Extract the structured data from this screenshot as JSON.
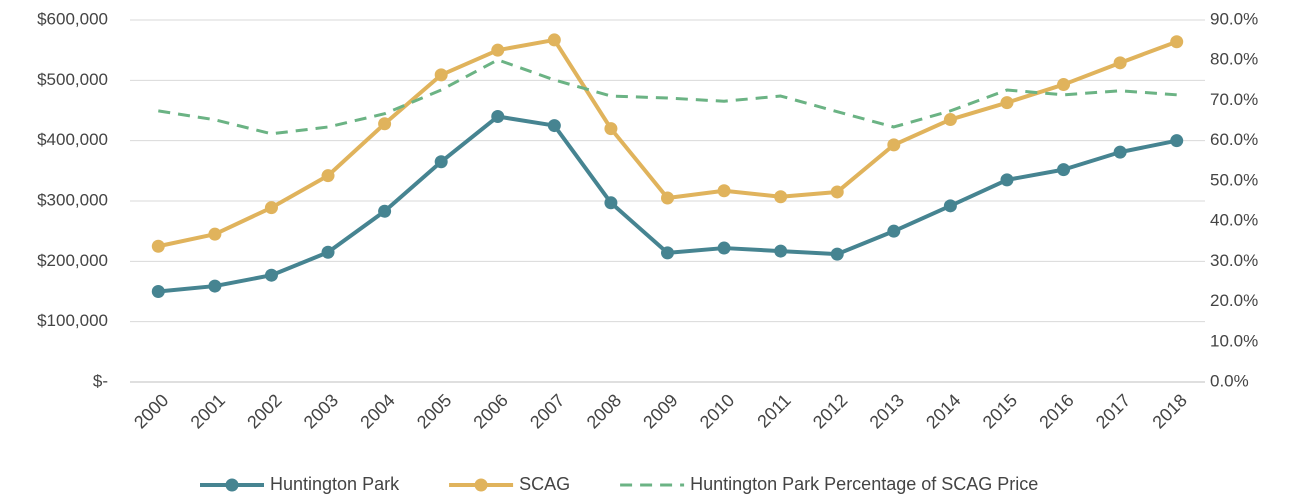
{
  "chart_data": {
    "type": "line",
    "categories": [
      "2000",
      "2001",
      "2002",
      "2003",
      "2004",
      "2005",
      "2006",
      "2007",
      "2008",
      "2009",
      "2010",
      "2011",
      "2012",
      "2013",
      "2014",
      "2015",
      "2016",
      "2017",
      "2018"
    ],
    "series": [
      {
        "name": "Huntington Park",
        "color": "#468491",
        "markers": true,
        "dashed": false,
        "values": [
          150000,
          159000,
          177000,
          215000,
          283000,
          365000,
          440000,
          425000,
          297000,
          214000,
          222000,
          217000,
          212000,
          250000,
          292000,
          335000,
          352000,
          381000,
          400000
        ]
      },
      {
        "name": "SCAG",
        "color": "#e0b35c",
        "markers": true,
        "dashed": false,
        "values": [
          225000,
          245000,
          289000,
          342000,
          428000,
          509000,
          550000,
          567000,
          420000,
          305000,
          317000,
          307000,
          315000,
          393000,
          435000,
          463000,
          493000,
          529000,
          564000
        ]
      },
      {
        "name": "Huntington Park Percentage of SCAG Price",
        "color": "#6bb384",
        "markers": false,
        "dashed": true,
        "axis": "y2",
        "values": [
          67.4,
          65.2,
          61.7,
          63.4,
          66.7,
          72.6,
          80.1,
          75.1,
          71.1,
          70.6,
          69.8,
          71.1,
          67.2,
          63.4,
          67.4,
          72.6,
          71.4,
          72.4,
          71.4
        ]
      }
    ],
    "ylim": [
      0,
      600000
    ],
    "yticks": [
      {
        "value": 0,
        "label": "$-"
      },
      {
        "value": 100000,
        "label": "$100,000"
      },
      {
        "value": 200000,
        "label": "$200,000"
      },
      {
        "value": 300000,
        "label": "$300,000"
      },
      {
        "value": 400000,
        "label": "$400,000"
      },
      {
        "value": 500000,
        "label": "$500,000"
      },
      {
        "value": 600000,
        "label": "$600,000"
      }
    ],
    "y2lim": [
      0,
      90
    ],
    "y2ticks": [
      {
        "value": 0,
        "label": "0.0%"
      },
      {
        "value": 10,
        "label": "10.0%"
      },
      {
        "value": 20,
        "label": "20.0%"
      },
      {
        "value": 30,
        "label": "30.0%"
      },
      {
        "value": 40,
        "label": "40.0%"
      },
      {
        "value": 50,
        "label": "50.0%"
      },
      {
        "value": 60,
        "label": "60.0%"
      },
      {
        "value": 70,
        "label": "70.0%"
      },
      {
        "value": 80,
        "label": "80.0%"
      },
      {
        "value": 90,
        "label": "90.0%"
      }
    ],
    "grid": true,
    "legend": "bottom"
  }
}
